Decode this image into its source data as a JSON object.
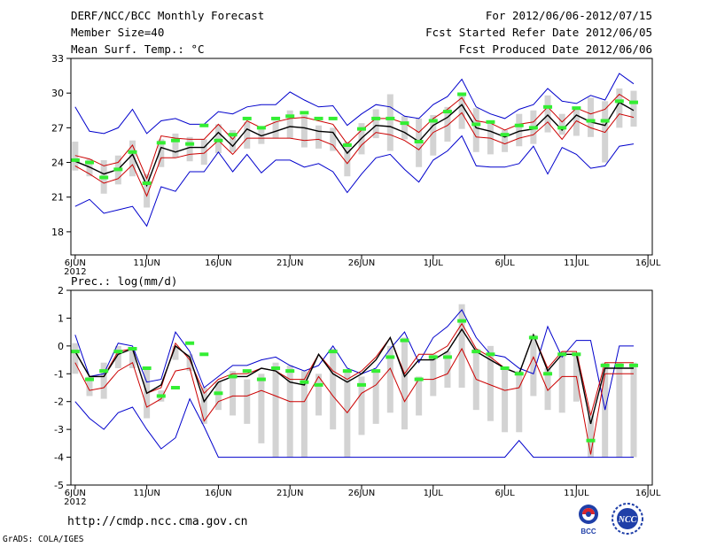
{
  "header": {
    "title": "DERF/NCC/BCC Monthly Forecast",
    "member_size": "Member Size=40",
    "variable": "Mean Surf. Temp.: °C",
    "period": "For 2012/06/06-2012/07/15",
    "started": "Fcst Started Refer Date 2012/06/05",
    "produced": "Fcst Produced Date 2012/06/06"
  },
  "footer": {
    "url": "http://cmdp.ncc.cma.gov.cn",
    "software": "GrADS: COLA/IGES"
  },
  "logos": {
    "bcc": "BCC",
    "ncc": "NCC"
  },
  "colors": {
    "envelope": "#0000cc",
    "spread": "#cc0000",
    "ensemble_mean": "#000000",
    "member_bar": "#d3d3d3",
    "marker": "#33ee33"
  },
  "chart_data": [
    {
      "type": "line",
      "title": "Mean Surf. Temp.: °C",
      "ylabel": "°C",
      "ylim": [
        16,
        33
      ],
      "yticks": [
        18,
        21,
        24,
        27,
        30,
        33
      ],
      "xticks": [
        {
          "day": 1,
          "label": "6JUN",
          "sub": "2012"
        },
        {
          "day": 6,
          "label": "11JUN"
        },
        {
          "day": 11,
          "label": "16JUN"
        },
        {
          "day": 16,
          "label": "21JUN"
        },
        {
          "day": 21,
          "label": "26JUN"
        },
        {
          "day": 26,
          "label": "1JUL"
        },
        {
          "day": 31,
          "label": "6JUL"
        },
        {
          "day": 36,
          "label": "11JUL"
        },
        {
          "day": 41,
          "label": "16JUL"
        }
      ],
      "days": [
        1,
        2,
        3,
        4,
        5,
        6,
        7,
        8,
        9,
        10,
        11,
        12,
        13,
        14,
        15,
        16,
        17,
        18,
        19,
        20,
        21,
        22,
        23,
        24,
        25,
        26,
        27,
        28,
        29,
        30,
        31,
        32,
        33,
        34,
        35,
        36,
        37,
        38,
        39,
        40
      ],
      "series": [
        {
          "name": "max",
          "color": "#0000cc",
          "values": [
            28.8,
            26.7,
            26.5,
            27.0,
            28.6,
            26.5,
            27.6,
            27.8,
            27.3,
            27.3,
            28.4,
            28.2,
            28.8,
            29.0,
            29.0,
            30.1,
            29.4,
            28.8,
            28.9,
            27.2,
            28.2,
            29.0,
            28.8,
            28.0,
            27.8,
            29.0,
            29.7,
            31.2,
            28.8,
            28.2,
            27.8,
            28.6,
            29.0,
            30.4,
            29.3,
            29.1,
            29.8,
            29.4,
            31.7,
            30.8
          ]
        },
        {
          "name": "upper",
          "color": "#cc0000",
          "values": [
            24.6,
            24.3,
            23.7,
            24.0,
            25.5,
            22.6,
            26.3,
            26.1,
            26.0,
            26.0,
            27.3,
            26.0,
            27.6,
            27.0,
            27.5,
            27.8,
            27.9,
            27.6,
            27.3,
            25.6,
            26.8,
            27.8,
            27.8,
            27.4,
            26.6,
            27.8,
            28.6,
            29.6,
            27.6,
            27.4,
            26.8,
            27.3,
            27.5,
            28.8,
            27.5,
            28.7,
            28.2,
            28.6,
            29.9,
            29.1
          ]
        },
        {
          "name": "mean",
          "color": "#000000",
          "values": [
            24.1,
            23.6,
            23.0,
            23.4,
            24.7,
            22.0,
            25.3,
            24.9,
            25.3,
            25.3,
            26.6,
            25.4,
            26.9,
            26.3,
            26.7,
            27.1,
            27.0,
            26.7,
            26.6,
            24.8,
            26.1,
            27.2,
            27.1,
            26.6,
            25.8,
            27.2,
            27.9,
            29.0,
            27.0,
            26.7,
            26.2,
            26.7,
            26.9,
            28.1,
            26.8,
            28.1,
            27.5,
            27.2,
            29.2,
            28.5
          ]
        },
        {
          "name": "lower",
          "color": "#cc0000",
          "values": [
            23.7,
            23.0,
            22.2,
            22.6,
            23.8,
            21.1,
            24.4,
            24.4,
            24.7,
            24.8,
            25.9,
            24.7,
            26.1,
            26.1,
            26.1,
            26.1,
            25.9,
            26.0,
            25.5,
            23.9,
            25.5,
            26.6,
            26.4,
            25.9,
            25.1,
            26.6,
            27.2,
            28.3,
            26.2,
            26.1,
            25.6,
            26.1,
            26.4,
            27.5,
            26.0,
            27.6,
            27.0,
            26.6,
            28.2,
            27.9
          ]
        },
        {
          "name": "min",
          "color": "#0000cc",
          "values": [
            20.2,
            20.8,
            19.6,
            19.9,
            20.2,
            18.5,
            21.9,
            21.5,
            23.2,
            23.2,
            24.9,
            23.2,
            24.7,
            23.1,
            24.2,
            24.2,
            23.6,
            23.9,
            23.2,
            21.4,
            23.0,
            24.4,
            24.7,
            23.4,
            22.3,
            24.2,
            25.0,
            26.3,
            23.7,
            23.6,
            23.6,
            23.9,
            25.4,
            23.0,
            25.3,
            24.7,
            23.5,
            23.7,
            25.4,
            25.6
          ]
        },
        {
          "name": "bar_high",
          "color": "#d3d3d3",
          "values": [
            25.8,
            24.3,
            24.2,
            24.6,
            25.9,
            23.0,
            26.0,
            26.5,
            26.2,
            26.0,
            27.3,
            26.8,
            27.5,
            27.0,
            27.6,
            28.5,
            28.1,
            27.2,
            27.0,
            25.8,
            27.4,
            28.6,
            29.9,
            28.0,
            27.8,
            28.1,
            28.8,
            29.8,
            28.7,
            27.6,
            26.8,
            28.2,
            28.5,
            29.8,
            28.2,
            28.8,
            29.6,
            29.3,
            30.4,
            30.2
          ]
        },
        {
          "name": "bar_low",
          "color": "#d3d3d3",
          "values": [
            23.3,
            22.8,
            21.3,
            22.1,
            22.8,
            20.1,
            23.6,
            24.4,
            24.1,
            23.8,
            24.8,
            24.9,
            25.2,
            25.6,
            26.1,
            26.1,
            25.3,
            25.2,
            25.0,
            22.8,
            24.7,
            26.1,
            25.0,
            26.0,
            23.6,
            24.6,
            25.8,
            26.9,
            24.9,
            24.7,
            24.9,
            25.4,
            25.6,
            26.6,
            26.4,
            26.3,
            26.2,
            24.0,
            27.0,
            27.1
          ]
        },
        {
          "name": "marker",
          "color": "#33ee33",
          "values": [
            24.2,
            24.0,
            22.7,
            23.4,
            24.9,
            22.2,
            25.7,
            25.9,
            25.6,
            27.2,
            25.9,
            26.4,
            27.8,
            27.0,
            27.8,
            28.0,
            28.3,
            27.8,
            27.8,
            25.5,
            26.9,
            27.8,
            27.8,
            27.4,
            25.8,
            27.6,
            28.4,
            29.9,
            27.3,
            27.5,
            26.4,
            27.2,
            27.0,
            28.8,
            27.0,
            28.7,
            27.6,
            27.6,
            29.3,
            29.2
          ]
        }
      ]
    },
    {
      "type": "line",
      "title": "Prec.: log(mm/d)",
      "ylabel": "log(mm/d)",
      "ylim": [
        -5,
        2
      ],
      "yticks": [
        -5,
        -4,
        -3,
        -2,
        -1,
        0,
        1,
        2
      ],
      "xticks": [
        {
          "day": 1,
          "label": "6JUN",
          "sub": "2012"
        },
        {
          "day": 6,
          "label": "11JUN"
        },
        {
          "day": 11,
          "label": "16JUN"
        },
        {
          "day": 16,
          "label": "21JUN"
        },
        {
          "day": 21,
          "label": "26JUN"
        },
        {
          "day": 26,
          "label": "1JUL"
        },
        {
          "day": 31,
          "label": "6JUL"
        },
        {
          "day": 36,
          "label": "11JUL"
        },
        {
          "day": 41,
          "label": "16JUL"
        }
      ],
      "days": [
        1,
        2,
        3,
        4,
        5,
        6,
        7,
        8,
        9,
        10,
        11,
        12,
        13,
        14,
        15,
        16,
        17,
        18,
        19,
        20,
        21,
        22,
        23,
        24,
        25,
        26,
        27,
        28,
        29,
        30,
        31,
        32,
        33,
        34,
        35,
        36,
        37,
        38,
        39,
        40
      ],
      "series": [
        {
          "name": "max",
          "color": "#0000cc",
          "values": [
            0.4,
            -1.1,
            -1.0,
            0.1,
            0.0,
            -1.3,
            -1.2,
            0.5,
            -0.2,
            -1.5,
            -1.1,
            -0.7,
            -0.7,
            -0.5,
            -0.4,
            -0.7,
            -0.9,
            -0.7,
            0.0,
            -0.8,
            -1.0,
            -0.8,
            -0.1,
            0.5,
            -0.6,
            0.3,
            0.7,
            1.3,
            0.3,
            -0.3,
            -0.4,
            -0.8,
            -1.0,
            0.7,
            -0.4,
            0.2,
            0.2,
            -2.3,
            0.0,
            0.0
          ]
        },
        {
          "name": "upper",
          "color": "#cc0000",
          "values": [
            -0.2,
            -1.1,
            -1.1,
            -0.2,
            -0.1,
            -1.7,
            -1.5,
            0.1,
            -0.5,
            -1.7,
            -1.2,
            -1.0,
            -1.0,
            -0.8,
            -0.9,
            -1.2,
            -1.2,
            -0.3,
            -0.9,
            -1.2,
            -0.9,
            -0.4,
            0.3,
            -1.0,
            -0.3,
            -0.3,
            0.0,
            0.8,
            -0.1,
            -0.4,
            -0.8,
            -1.0,
            0.4,
            -0.8,
            -0.2,
            -0.2,
            -2.5,
            -0.6,
            -0.6,
            -0.6
          ]
        },
        {
          "name": "mean",
          "color": "#000000",
          "values": [
            -0.2,
            -1.1,
            -1.1,
            -0.3,
            -0.1,
            -1.7,
            -1.4,
            0.0,
            -0.4,
            -2.0,
            -1.3,
            -1.1,
            -1.1,
            -0.8,
            -0.9,
            -1.3,
            -1.4,
            -0.3,
            -1.0,
            -1.3,
            -1.0,
            -0.5,
            0.3,
            -1.1,
            -0.5,
            -0.5,
            -0.2,
            0.6,
            -0.2,
            -0.5,
            -0.8,
            -1.0,
            0.4,
            -0.9,
            -0.3,
            -0.3,
            -2.8,
            -0.8,
            -0.8,
            -0.8
          ]
        },
        {
          "name": "lower",
          "color": "#cc0000",
          "values": [
            -0.6,
            -1.6,
            -1.5,
            -0.9,
            -0.6,
            -2.2,
            -1.9,
            -0.9,
            -0.8,
            -2.7,
            -2.0,
            -1.8,
            -1.8,
            -1.6,
            -1.8,
            -2.0,
            -2.0,
            -1.1,
            -1.8,
            -2.4,
            -1.7,
            -1.4,
            -0.8,
            -2.0,
            -1.2,
            -1.2,
            -1.0,
            -0.1,
            -1.2,
            -1.4,
            -1.6,
            -1.5,
            -0.4,
            -1.6,
            -1.1,
            -1.1,
            -3.9,
            -1.0,
            -1.0,
            -1.0
          ]
        },
        {
          "name": "min",
          "color": "#0000cc",
          "values": [
            -2.0,
            -2.6,
            -3.0,
            -2.4,
            -2.2,
            -3.0,
            -3.7,
            -3.3,
            -1.9,
            -2.9,
            -4.0,
            -4.0,
            -4.0,
            -4.0,
            -4.0,
            -4.0,
            -4.0,
            -4.0,
            -4.0,
            -4.0,
            -4.0,
            -4.0,
            -4.0,
            -4.0,
            -4.0,
            -4.0,
            -4.0,
            -4.0,
            -4.0,
            -4.0,
            -4.0,
            -3.4,
            -4.0,
            -4.0,
            -4.0,
            -4.0,
            -4.0,
            -4.0,
            -4.0,
            -4.0
          ]
        },
        {
          "name": "bar_high",
          "color": "#d3d3d3",
          "values": [
            0.1,
            -1.1,
            -0.6,
            0.0,
            -0.1,
            -0.8,
            -1.6,
            0.0,
            -0.3,
            -1.5,
            -1.3,
            -0.9,
            -1.2,
            -1.0,
            -0.6,
            -0.7,
            -0.9,
            -1.0,
            -0.1,
            -0.9,
            -1.1,
            -0.9,
            0.0,
            0.3,
            -1.1,
            -0.3,
            -0.2,
            1.5,
            -0.1,
            0.0,
            -0.8,
            -0.9,
            0.4,
            -0.8,
            -0.2,
            -0.3,
            -2.5,
            -0.6,
            -0.6,
            -0.6
          ]
        },
        {
          "name": "bar_low",
          "color": "#d3d3d3",
          "values": [
            -1.0,
            -1.8,
            -1.9,
            -0.8,
            -0.8,
            -2.6,
            -2.0,
            -0.5,
            -0.9,
            -2.8,
            -2.3,
            -2.5,
            -2.8,
            -3.5,
            -4.0,
            -4.0,
            -4.0,
            -2.5,
            -3.0,
            -4.0,
            -3.2,
            -2.8,
            -2.4,
            -3.0,
            -2.5,
            -1.8,
            -1.5,
            -1.5,
            -2.3,
            -2.7,
            -3.1,
            -3.1,
            -1.8,
            -2.3,
            -2.4,
            -2.0,
            -4.0,
            -4.0,
            -4.0,
            -4.0
          ]
        },
        {
          "name": "marker",
          "color": "#33ee33",
          "values": [
            -0.2,
            -1.2,
            -0.9,
            -0.2,
            -0.1,
            -0.8,
            -1.8,
            -1.5,
            0.1,
            -0.3,
            -1.7,
            -1.1,
            -0.9,
            -1.2,
            -0.8,
            -0.9,
            -1.3,
            -1.4,
            -0.2,
            -0.9,
            -1.4,
            -0.9,
            -0.4,
            0.2,
            -1.2,
            -0.4,
            -0.4,
            0.9,
            -0.2,
            -0.3,
            -0.8,
            -1.0,
            0.3,
            -1.0,
            -0.3,
            -0.3,
            -3.4,
            -0.7,
            -0.7,
            -0.7
          ]
        }
      ]
    }
  ]
}
